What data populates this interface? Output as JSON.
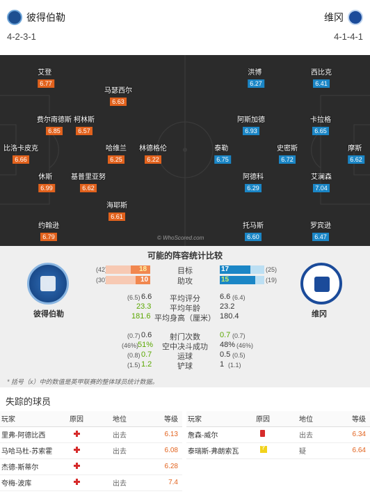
{
  "header": {
    "home_team": "彼得伯勒",
    "away_team": "维冈",
    "home_formation": "4-2-3-1",
    "away_formation": "4-1-4-1"
  },
  "pitch": {
    "watermark": "© WhoScored.com",
    "home_players": [
      {
        "name": "艾登",
        "rating": "6.77"
      },
      {
        "name": "马瑟西尔",
        "rating": "6.63"
      },
      {
        "name": "费尔南德斯",
        "rating": "6.85"
      },
      {
        "name": "柯林斯",
        "rating": "6.57"
      },
      {
        "name": "比洛卡皮克",
        "rating": "6.66"
      },
      {
        "name": "哈维兰",
        "rating": "6.25"
      },
      {
        "name": "林德格伦",
        "rating": "6.22"
      },
      {
        "name": "休斯",
        "rating": "6.99"
      },
      {
        "name": "基普里亚努",
        "rating": "6.62"
      },
      {
        "name": "海耶斯",
        "rating": "6.61"
      },
      {
        "name": "约翰逊",
        "rating": "6.79"
      }
    ],
    "away_players": [
      {
        "name": "洪博",
        "rating": "6.27"
      },
      {
        "name": "西比克",
        "rating": "6.41"
      },
      {
        "name": "阿斯加德",
        "rating": "6.93"
      },
      {
        "name": "卡拉格",
        "rating": "6.65"
      },
      {
        "name": "泰勒",
        "rating": "6.75"
      },
      {
        "name": "史密斯",
        "rating": "6.72"
      },
      {
        "name": "摩斯",
        "rating": "6.62"
      },
      {
        "name": "阿德科",
        "rating": "6.29"
      },
      {
        "name": "艾澜森",
        "rating": "7.04"
      },
      {
        "name": "托马斯",
        "rating": "6.60"
      },
      {
        "name": "罗宾逊",
        "rating": "6.47"
      }
    ]
  },
  "stats": {
    "title": "可能的阵容统计比较",
    "home_name": "彼得伯勒",
    "away_name": "维冈",
    "bars": [
      {
        "label": "目标",
        "home": "18",
        "home_avg": "(42)",
        "away": "17",
        "away_avg": "(25)",
        "home_frac": 0.43,
        "away_frac": 0.68
      },
      {
        "label": "助攻",
        "home": "10",
        "home_avg": "(30)",
        "away": "15",
        "away_avg": "(19)",
        "home_frac": 0.33,
        "away_frac": 0.79
      }
    ],
    "rows1": [
      {
        "label": "平均评分",
        "home": "6.6",
        "home_avg": "(6.5)",
        "away": "6.6",
        "away_avg": "(6.4)"
      },
      {
        "label": "平均年龄",
        "home": "23.3",
        "home_avg": "",
        "away": "23.2",
        "away_avg": ""
      },
      {
        "label": "平均身高（厘米）",
        "home": "181.6",
        "home_avg": "",
        "away": "180.4",
        "away_avg": ""
      }
    ],
    "rows2": [
      {
        "label": "射门次数",
        "home": "0.6",
        "home_avg": "(0.7)",
        "away": "0.7",
        "away_avg": "(0.7)"
      },
      {
        "label": "空中决斗成功",
        "home": "51%",
        "home_avg": "(46%)",
        "away": "48%",
        "away_avg": "(46%)"
      },
      {
        "label": "运球",
        "home": "0.7",
        "home_avg": "(0.8)",
        "away": "0.5",
        "away_avg": "(0.5)"
      },
      {
        "label": "铲球",
        "home": "1.2",
        "home_avg": "(1.5)",
        "away": "1",
        "away_avg": "(1.1)"
      }
    ],
    "footnote": "* 括号（x）中的数值是英甲联赛的整体球员统计数据。"
  },
  "missing": {
    "title": "失踪的球员",
    "headers": {
      "player": "玩家",
      "reason": "原因",
      "status": "地位",
      "rating": "等级"
    },
    "home": [
      {
        "player": "里弗-阿德比西",
        "reason": "injury",
        "status": "出去",
        "rating": "6.13"
      },
      {
        "player": "马哈马杜-苏索霍",
        "reason": "injury",
        "status": "出去",
        "rating": "6.08"
      },
      {
        "player": "杰德-斯蒂尔",
        "reason": "injury",
        "status": "",
        "rating": "6.28"
      },
      {
        "player": "夸梅-波库",
        "reason": "injury",
        "status": "出去",
        "rating": "7.4"
      }
    ],
    "away": [
      {
        "player": "詹森-威尔",
        "reason": "red-card",
        "status": "出去",
        "rating": "6.34"
      },
      {
        "player": "泰瑞斯-弗朗索瓦",
        "reason": "doubtful",
        "status": "疑",
        "rating": "6.64"
      }
    ]
  },
  "colors": {
    "home_rating": "#e2621d",
    "away_rating": "#1b86c6",
    "pitch": "#2b2b2b",
    "stats_bg": "#efefef"
  }
}
